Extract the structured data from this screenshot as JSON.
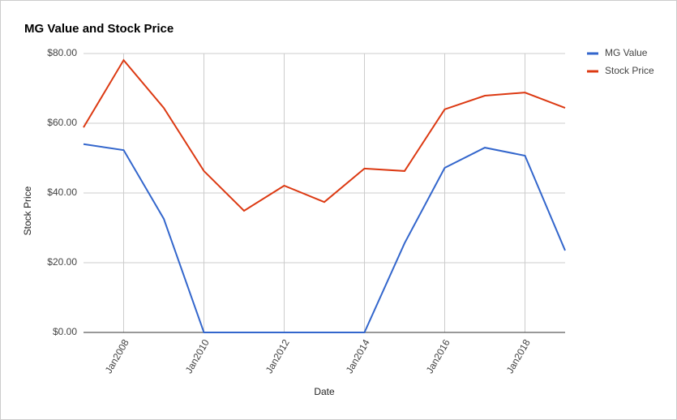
{
  "chart_data": {
    "type": "line",
    "title": "MG Value and Stock Price",
    "x_label": "Date",
    "y_label": "Stock Price",
    "x": [
      "2007-01",
      "2008-01",
      "2009-01",
      "2010-01",
      "2011-01",
      "2012-01",
      "2013-01",
      "2014-01",
      "2015-01",
      "2016-01",
      "2017-01",
      "2018-01",
      "2019-01"
    ],
    "series": [
      {
        "name": "MG Value",
        "color": "#3366cc",
        "values": [
          54.0,
          52.3,
          32.6,
          0,
          0,
          0,
          0,
          0,
          25.6,
          47.2,
          53.0,
          50.7,
          23.5
        ]
      },
      {
        "name": "Stock Price",
        "color": "#dc3912",
        "values": [
          58.8,
          78.1,
          64.4,
          46.3,
          34.9,
          42.1,
          37.4,
          47.0,
          46.3,
          64.0,
          67.9,
          68.8,
          64.4
        ]
      }
    ],
    "xlim": [
      "2007-01",
      "2019-01"
    ],
    "xticks": [
      {
        "value": "2008-01",
        "label": "Jan2008"
      },
      {
        "value": "2010-01",
        "label": "Jan2010"
      },
      {
        "value": "2012-01",
        "label": "Jan2012"
      },
      {
        "value": "2014-01",
        "label": "Jan2014"
      },
      {
        "value": "2016-01",
        "label": "Jan2016"
      },
      {
        "value": "2018-01",
        "label": "Jan2018"
      }
    ],
    "ylim": [
      0,
      80
    ],
    "yticks": [
      {
        "value": 0,
        "label": "$0.00"
      },
      {
        "value": 20,
        "label": "$20.00"
      },
      {
        "value": 40,
        "label": "$40.00"
      },
      {
        "value": 60,
        "label": "$60.00"
      },
      {
        "value": 80,
        "label": "$80.00"
      }
    ],
    "grid": true,
    "legend": "right"
  }
}
